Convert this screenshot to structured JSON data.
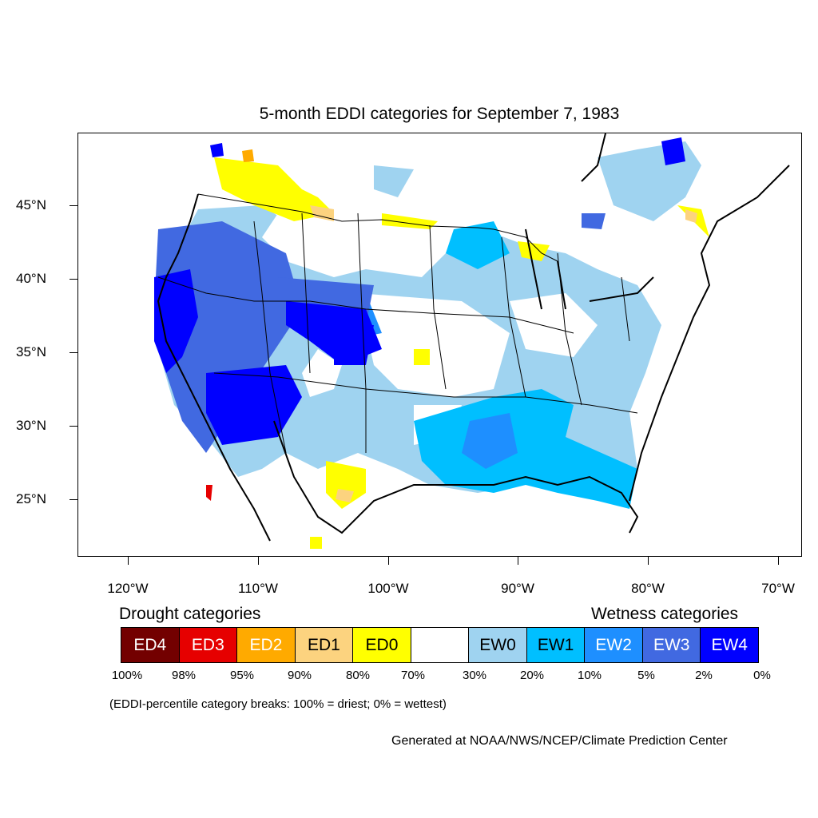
{
  "title": "5-month EDDI categories for September 7, 1983",
  "lat_labels": [
    "45°N",
    "40°N",
    "35°N",
    "30°N",
    "25°N"
  ],
  "lon_labels": [
    "120°W",
    "110°W",
    "100°W",
    "90°W",
    "80°W",
    "70°W"
  ],
  "legend": {
    "drought_heading": "Drought categories",
    "wetness_heading": "Wetness categories",
    "categories": [
      {
        "label": "ED4",
        "color": "#730000",
        "text_color": "#ffffff"
      },
      {
        "label": "ED3",
        "color": "#e60000",
        "text_color": "#ffffff"
      },
      {
        "label": "ED2",
        "color": "#ffaa00",
        "text_color": "#ffffff"
      },
      {
        "label": "ED1",
        "color": "#fcd37f",
        "text_color": "#000000"
      },
      {
        "label": "ED0",
        "color": "#ffff00",
        "text_color": "#000000"
      },
      {
        "label": "",
        "color": "#ffffff",
        "text_color": "#000000"
      },
      {
        "label": "EW0",
        "color": "#9fd3f0",
        "text_color": "#000000"
      },
      {
        "label": "EW1",
        "color": "#00bfff",
        "text_color": "#000000"
      },
      {
        "label": "EW2",
        "color": "#1e8fff",
        "text_color": "#ffffff"
      },
      {
        "label": "EW3",
        "color": "#4169e1",
        "text_color": "#ffffff"
      },
      {
        "label": "EW4",
        "color": "#0000ff",
        "text_color": "#ffffff"
      }
    ],
    "percentiles": [
      "100%",
      "98%",
      "95%",
      "90%",
      "80%",
      "70%",
      "30%",
      "20%",
      "10%",
      "5%",
      "2%",
      "0%"
    ]
  },
  "note": "(EDDI-percentile category breaks: 100% = driest; 0% = wettest)",
  "credit": "Generated at NOAA/NWS/NCEP/Climate Prediction Center"
}
